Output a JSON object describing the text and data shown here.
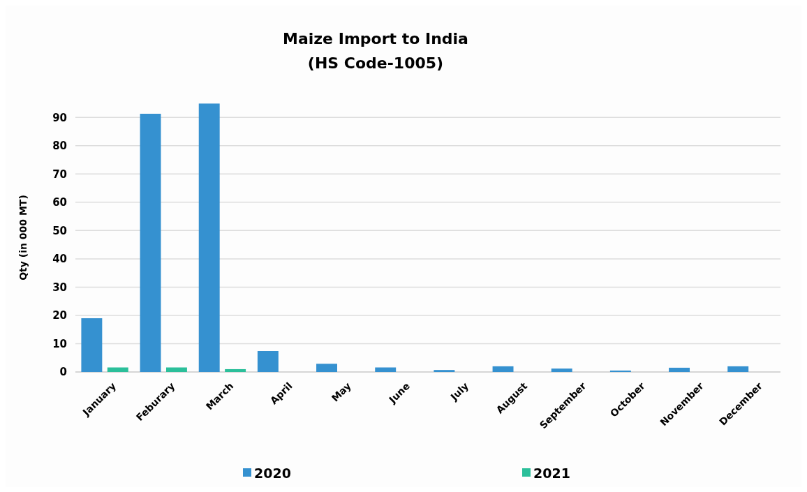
{
  "chart_data": {
    "type": "bar",
    "title": "Maize Import to India",
    "subtitle": "(HS Code-1005)",
    "ylabel": "Qty (in 000 MT)",
    "categories": [
      "January",
      "Feburary",
      "March",
      "April",
      "May",
      "June",
      "July",
      "August",
      "September",
      "October",
      "November",
      "December"
    ],
    "series": [
      {
        "name": "2020",
        "color": "#3591d0",
        "values": [
          19.0,
          91.3,
          94.9,
          7.4,
          2.9,
          1.6,
          0.7,
          2.0,
          1.2,
          0.5,
          1.5,
          2.0
        ]
      },
      {
        "name": "2021",
        "color": "#2bbf9a",
        "values": [
          1.6,
          1.6,
          1.0,
          null,
          null,
          null,
          null,
          null,
          null,
          null,
          null,
          null
        ]
      }
    ],
    "ylim": [
      0,
      95
    ],
    "yticks": [
      0,
      10,
      20,
      30,
      40,
      50,
      60,
      70,
      80,
      90
    ],
    "grid": "y",
    "legend": "bottom"
  }
}
